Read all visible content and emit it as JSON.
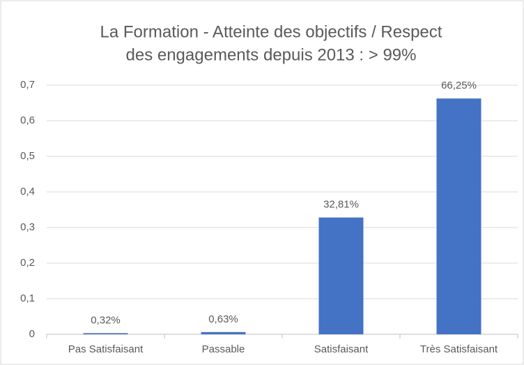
{
  "chart_data": {
    "type": "bar",
    "title": [
      "La Formation - Atteinte des objectifs  / Respect",
      "des engagements  depuis 2013 :   > 99%"
    ],
    "categories": [
      "Pas Satisfaisant",
      "Passable",
      "Satisfaisant",
      "Très Satisfaisant"
    ],
    "values": [
      0.0032,
      0.0063,
      0.3281,
      0.6625
    ],
    "value_labels": [
      "0,32%",
      "0,63%",
      "32,81%",
      "66,25%"
    ],
    "color": "#4472c4",
    "ylim": [
      0,
      0.7
    ],
    "yticks": [
      0,
      {
        "value": 0.1,
        "label": "0,1"
      },
      {
        "value": 0.2,
        "label": "0,2"
      },
      {
        "value": 0.3,
        "label": "0,3"
      },
      {
        "value": 0.4,
        "label": "0,4"
      },
      {
        "value": 0.5,
        "label": "0,5"
      },
      {
        "value": 0.6,
        "label": "0,6"
      },
      {
        "value": 0.7,
        "label": "0,7"
      }
    ],
    "grid": true
  }
}
